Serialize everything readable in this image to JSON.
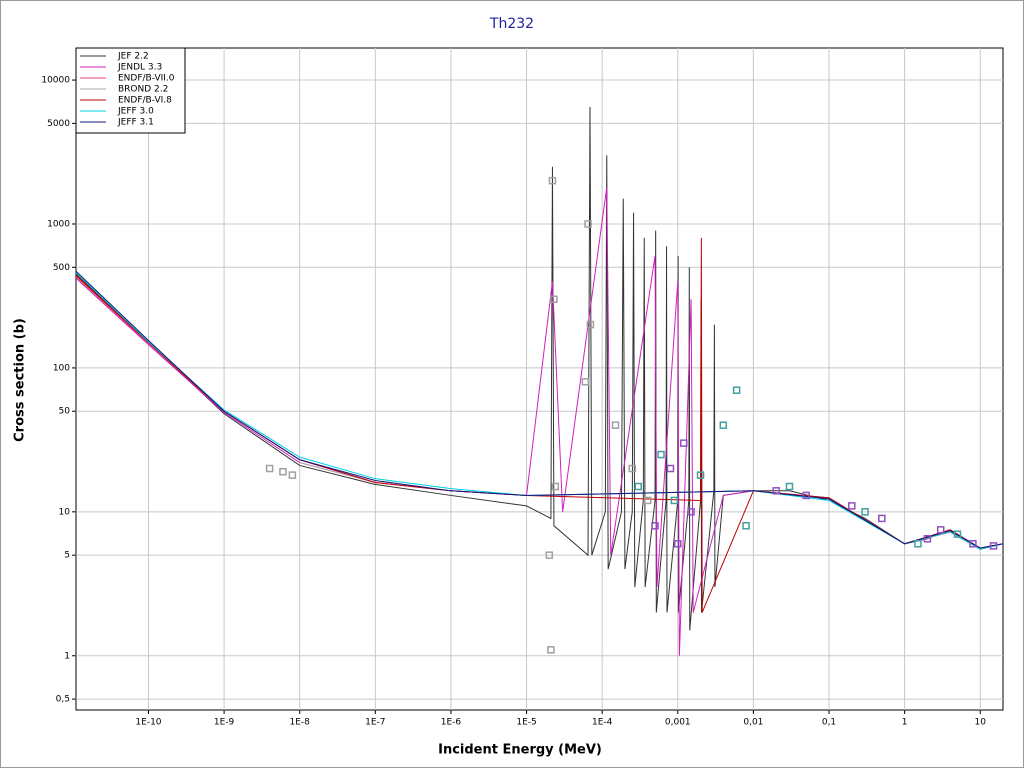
{
  "chart_data": {
    "type": "line",
    "title": "Th232",
    "x_label": "Incident Energy (MeV)",
    "y_label": "Cross section (b)",
    "xscale": "log",
    "yscale": "log",
    "grid": true,
    "legend": "top-left",
    "xlim": [
      1.1e-11,
      20
    ],
    "ylim": [
      0.42,
      16700
    ],
    "xticks": [
      {
        "value": 1e-10,
        "label": "1E-10"
      },
      {
        "value": 1e-09,
        "label": "1E-9"
      },
      {
        "value": 1e-08,
        "label": "1E-8"
      },
      {
        "value": 1e-07,
        "label": "1E-7"
      },
      {
        "value": 1e-06,
        "label": "1E-6"
      },
      {
        "value": 1e-05,
        "label": "1E-5"
      },
      {
        "value": 0.0001,
        "label": "1E-4"
      },
      {
        "value": 0.001,
        "label": "0,001"
      },
      {
        "value": 0.01,
        "label": "0,01"
      },
      {
        "value": 0.1,
        "label": "0,1"
      },
      1,
      10
    ],
    "yticks": [
      {
        "value": 0.5,
        "label": "0,5"
      },
      1,
      5,
      10,
      50,
      100,
      500,
      1000,
      5000,
      10000
    ],
    "series": [
      {
        "name": "JEF 2.2",
        "color": "#333333",
        "x": [
          1.1e-11,
          1e-10,
          1e-09,
          1e-08,
          1e-07,
          1e-06,
          1e-05,
          2.1e-05,
          2.2e-05,
          2.3e-05,
          6.5e-05,
          6.9e-05,
          7.3e-05,
          0.00011,
          0.000115,
          0.00012,
          0.00018,
          0.00019,
          0.0002,
          0.00025,
          0.00026,
          0.00027,
          0.00035,
          0.00036,
          0.00037,
          0.0005,
          0.00051,
          0.00052,
          0.0007,
          0.00071,
          0.00072,
          0.001,
          0.00101,
          0.00102,
          0.0014,
          0.00142,
          0.00144,
          0.002,
          0.00203,
          0.00206,
          0.003,
          0.00305,
          0.0031,
          0.004,
          0.01,
          0.03,
          0.1,
          0.3,
          1,
          2,
          4,
          10,
          20
        ],
        "values": [
          450,
          150,
          48,
          21,
          15.5,
          13,
          11,
          9,
          2500,
          8,
          5,
          6500,
          5,
          10,
          3000,
          4,
          10,
          1500,
          4,
          10,
          1200,
          3,
          12,
          800,
          3,
          12,
          900,
          2,
          12,
          700,
          2,
          12,
          600,
          2,
          12,
          500,
          1.5,
          12,
          300,
          2,
          14,
          200,
          3,
          13,
          14,
          14,
          12,
          9,
          6,
          6.5,
          7.5,
          5.5,
          6
        ]
      },
      {
        "name": "JENDL 3.3",
        "color": "#d020c0",
        "x": [
          1.1e-11,
          1e-10,
          1e-09,
          1e-08,
          1e-07,
          1e-06,
          1e-05,
          2.2e-05,
          3e-05,
          0.000115,
          0.00013,
          0.0005,
          0.00053,
          0.001,
          0.00105,
          0.0015,
          0.0016,
          0.004,
          0.01,
          0.1,
          1,
          4,
          10,
          20
        ],
        "values": [
          420,
          145,
          49,
          22,
          16,
          14,
          13,
          400,
          10,
          1800,
          5,
          600,
          3,
          400,
          1,
          300,
          2,
          13,
          14,
          12.5,
          6,
          7.3,
          5.6,
          6
        ]
      },
      {
        "name": "ENDF/B-VII.0",
        "color": "#e04070",
        "x": [
          1.1e-11,
          1e-10,
          1e-09,
          1e-08,
          1e-07,
          1e-06,
          1e-05,
          0.01,
          0.1,
          1,
          4,
          10,
          20
        ],
        "values": [
          430,
          148,
          50,
          23,
          16,
          14,
          13,
          14,
          12.5,
          6,
          7.4,
          5.5,
          6
        ]
      },
      {
        "name": "BROND 2.2",
        "color": "#aaaaaa",
        "x": [
          1e-08,
          1e-07,
          1e-06,
          1e-05,
          0.01,
          0.1,
          1,
          4,
          10,
          20
        ],
        "values": [
          22,
          16,
          14,
          13,
          14,
          12.5,
          6,
          7.2,
          5.5,
          6
        ]
      },
      {
        "name": "ENDF/B-VI.8",
        "color": "#c00000",
        "x": [
          1.1e-11,
          1e-10,
          1e-09,
          1e-08,
          1e-07,
          1e-06,
          1e-05,
          0.002,
          0.00205,
          0.0021,
          0.01,
          0.1,
          1,
          4,
          10,
          20
        ],
        "values": [
          440,
          150,
          50,
          23,
          16,
          14,
          13,
          12,
          800,
          2,
          14,
          12.5,
          6,
          7.5,
          5.6,
          6
        ]
      },
      {
        "name": "JEFF 3.0",
        "color": "#00d0e0",
        "x": [
          1.1e-11,
          1e-10,
          1e-09,
          1e-08,
          1e-07,
          1e-06,
          1e-05,
          0.01,
          0.1,
          1,
          4,
          10,
          20
        ],
        "values": [
          460,
          152,
          51,
          24,
          17,
          14.5,
          13,
          14,
          12,
          6,
          7.3,
          5.5,
          6
        ]
      },
      {
        "name": "JEFF 3.1",
        "color": "#101880",
        "x": [
          1.1e-11,
          1e-10,
          1e-09,
          1e-08,
          1e-07,
          1e-06,
          1e-05,
          0.01,
          0.1,
          1,
          4,
          10,
          20
        ],
        "values": [
          470,
          155,
          50,
          23,
          16.5,
          14,
          13,
          14,
          12.3,
          6,
          7.4,
          5.6,
          6
        ]
      },
      {
        "style": "markers",
        "color": "#a0a0a0",
        "x": [
          4e-09,
          6e-09,
          8e-09,
          2e-05,
          2.1e-05,
          2.2e-05,
          2.3e-05,
          2.4e-05,
          6e-05,
          6.5e-05,
          7e-05,
          0.00015,
          0.00025,
          0.0004
        ],
        "values": [
          20,
          19,
          18,
          5,
          1.1,
          2000,
          300,
          15,
          80,
          1000,
          200,
          40,
          20,
          12
        ]
      },
      {
        "style": "markers",
        "color": "#9050c0",
        "x": [
          0.0005,
          0.0008,
          0.001,
          0.0012,
          0.0015,
          0.02,
          0.05,
          0.2,
          0.5,
          2,
          3,
          8,
          15
        ],
        "values": [
          8,
          20,
          6,
          30,
          10,
          14,
          13,
          11,
          9,
          6.5,
          7.5,
          6,
          5.8
        ]
      },
      {
        "style": "markers",
        "color": "#40a0a0",
        "x": [
          0.0003,
          0.0006,
          0.0009,
          0.002,
          0.004,
          0.006,
          0.008,
          0.03,
          0.3,
          1.5,
          5
        ],
        "values": [
          15,
          25,
          12,
          18,
          40,
          70,
          8,
          15,
          10,
          6,
          7
        ]
      }
    ]
  }
}
